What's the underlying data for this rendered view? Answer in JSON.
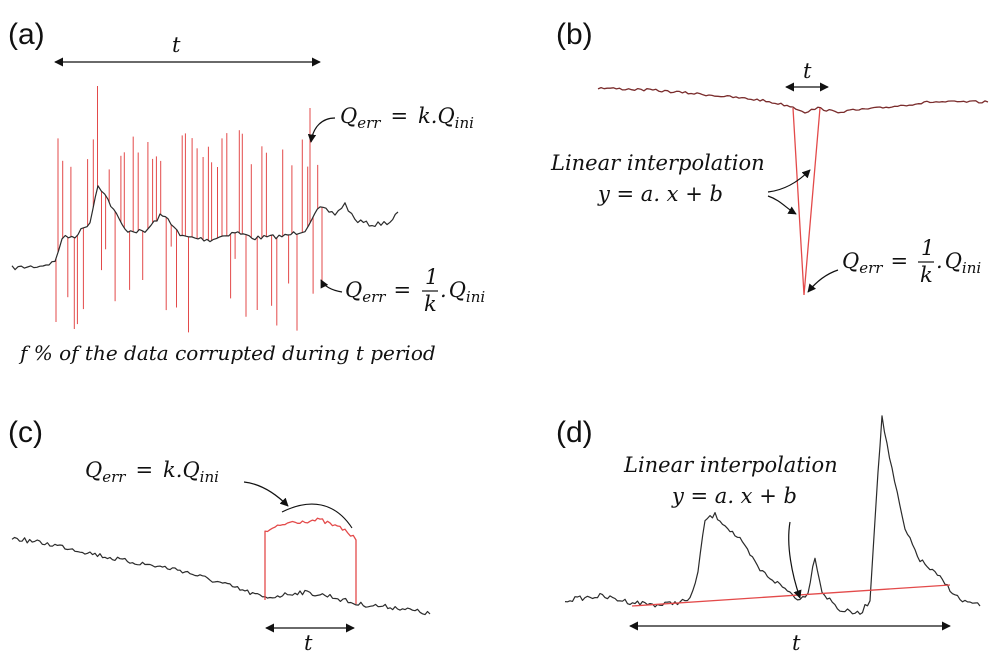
{
  "colors": {
    "signal": "#2b2b2b",
    "corrupted": "#e34a4a",
    "arrow": "#111111"
  },
  "panel_a": {
    "label": "(a)",
    "t_label": "t",
    "err_high": "Q_err = k.Q_ini",
    "err_low": "Q_err = 1/k.Q_ini",
    "caption": "f % of the data corrupted during t period"
  },
  "panel_b": {
    "label": "(b)",
    "t_label": "t",
    "interp_title": "Linear interpolation",
    "interp_eq": "y = a. x + b",
    "err_low": "Q_err = 1/k.Q_ini"
  },
  "panel_c": {
    "label": "(c)",
    "t_label": "t",
    "err_high": "Q_err = k.Q_ini"
  },
  "panel_d": {
    "label": "(d)",
    "t_label": "t",
    "interp_title": "Linear interpolation",
    "interp_eq": "y = a. x + b"
  },
  "math_parts": {
    "Q": "Q",
    "err": "err",
    "ini": "ini",
    "eq": "=",
    "k_dot": "k.",
    "one": "1",
    "k": "k",
    "dot": "."
  }
}
